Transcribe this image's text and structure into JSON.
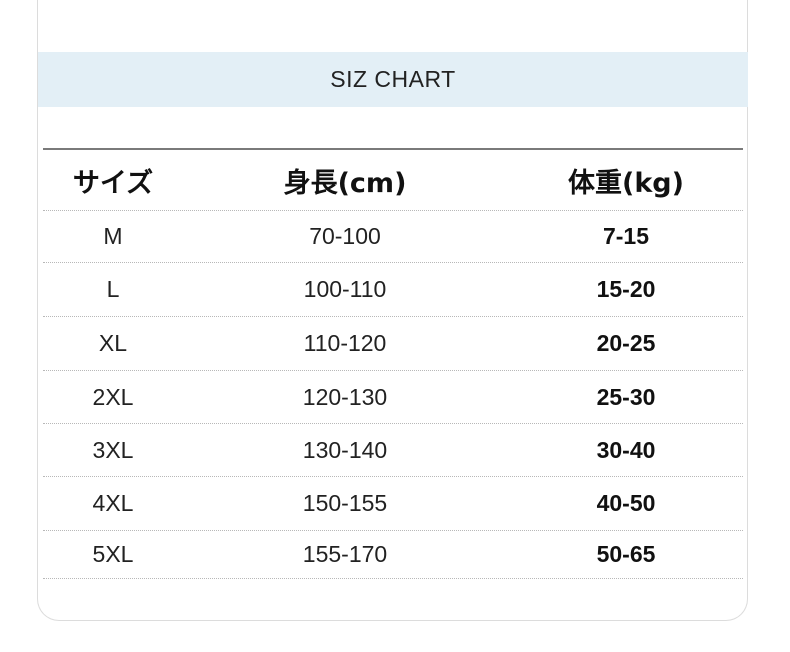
{
  "title": "SIZ CHART",
  "table": {
    "headers": [
      "サイズ",
      "身長(cm)",
      "体重(kg)"
    ],
    "rows": [
      [
        "M",
        "70-100",
        "7-15"
      ],
      [
        "L",
        "100-110",
        "15-20"
      ],
      [
        "XL",
        "110-120",
        "20-25"
      ],
      [
        "2XL",
        "120-130",
        "25-30"
      ],
      [
        "3XL",
        "130-140",
        "30-40"
      ],
      [
        "4XL",
        "150-155",
        "40-50"
      ],
      [
        "5XL",
        "155-170",
        "50-65"
      ]
    ]
  },
  "colors": {
    "band": "#e3eff6",
    "rule": "#7a7a7a"
  }
}
